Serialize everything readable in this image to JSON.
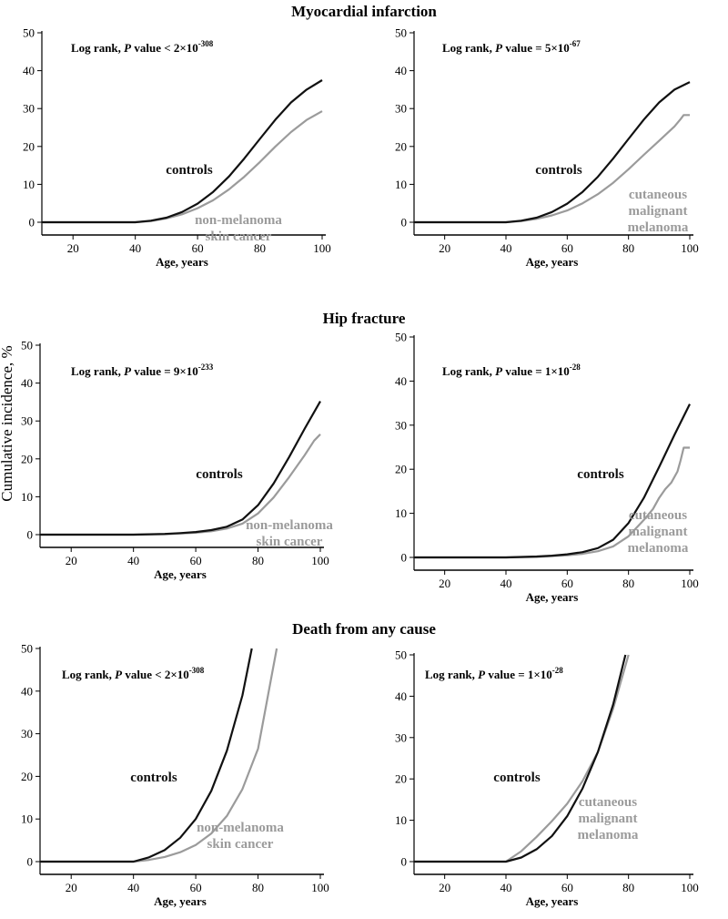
{
  "y_axis_label": "Cumulative incidence, %",
  "colors": {
    "controls": "#111111",
    "case": "#9b9b9b",
    "axis": "#000000"
  },
  "chart_data": [
    {
      "type": "line",
      "row_title": "Myocardial infarction",
      "p_main": "Log rank, P value < 2×10",
      "p_sup": "-308",
      "xlabel": "Age, years",
      "ylabel": "Cumulative incidence, %",
      "xlim": [
        10,
        100
      ],
      "ylim": [
        0,
        50
      ],
      "xticks": [
        20,
        40,
        60,
        80,
        100
      ],
      "yticks": [
        0,
        10,
        20,
        30,
        40,
        50
      ],
      "series": [
        {
          "name": "controls",
          "label_lines": [
            "controls"
          ],
          "color": "#111111",
          "x": [
            10,
            40,
            45,
            50,
            55,
            60,
            65,
            70,
            75,
            80,
            85,
            90,
            95,
            100
          ],
          "y": [
            0,
            0,
            0.4,
            1.2,
            2.7,
            4.9,
            8,
            12,
            16.8,
            22,
            27.1,
            31.6,
            35,
            37.5
          ]
        },
        {
          "name": "non-melanoma skin cancer",
          "label_lines": [
            "non-melanoma",
            "skin cancer"
          ],
          "color": "#9b9b9b",
          "x": [
            10,
            40,
            45,
            50,
            55,
            60,
            65,
            70,
            75,
            80,
            85,
            90,
            95,
            100
          ],
          "y": [
            0,
            0,
            0.3,
            1,
            2.1,
            3.7,
            5.8,
            8.6,
            12,
            15.9,
            20,
            23.8,
            27,
            29.3
          ]
        }
      ]
    },
    {
      "type": "line",
      "row_title": "",
      "p_main": "Log rank, P value = 5×10",
      "p_sup": "-67",
      "xlabel": "Age, years",
      "ylabel": "Cumulative incidence, %",
      "xlim": [
        10,
        100
      ],
      "ylim": [
        0,
        50
      ],
      "xticks": [
        20,
        40,
        60,
        80,
        100
      ],
      "yticks": [
        0,
        10,
        20,
        30,
        40,
        50
      ],
      "series": [
        {
          "name": "controls",
          "label_lines": [
            "controls"
          ],
          "color": "#111111",
          "x": [
            10,
            40,
            45,
            50,
            55,
            60,
            65,
            70,
            75,
            80,
            85,
            90,
            95,
            100
          ],
          "y": [
            0,
            0,
            0.4,
            1.2,
            2.7,
            4.9,
            8,
            12,
            16.8,
            22,
            27.1,
            31.6,
            35,
            37
          ]
        },
        {
          "name": "cutaneous malignant melanoma",
          "label_lines": [
            "cutaneous",
            "malignant",
            "melanoma"
          ],
          "color": "#9b9b9b",
          "x": [
            10,
            40,
            45,
            50,
            55,
            60,
            65,
            70,
            75,
            80,
            85,
            90,
            95,
            97,
            98,
            100
          ],
          "y": [
            0,
            0,
            0.3,
            0.9,
            1.8,
            3.1,
            5,
            7.4,
            10.4,
            14,
            17.8,
            21.5,
            25.3,
            27.2,
            28.3,
            28.3
          ]
        }
      ]
    },
    {
      "type": "line",
      "row_title": "Hip fracture",
      "p_main": "Log rank, P value = 9×10",
      "p_sup": "-233",
      "xlabel": "Age, years",
      "ylabel": "Cumulative incidence, %",
      "xlim": [
        10,
        100
      ],
      "ylim": [
        0,
        50
      ],
      "xticks": [
        20,
        40,
        60,
        80,
        100
      ],
      "yticks": [
        0,
        10,
        20,
        30,
        40,
        50
      ],
      "series": [
        {
          "name": "controls",
          "label_lines": [
            "controls"
          ],
          "color": "#111111",
          "x": [
            10,
            40,
            50,
            55,
            60,
            65,
            70,
            75,
            80,
            85,
            90,
            95,
            100
          ],
          "y": [
            0,
            0,
            0.2,
            0.4,
            0.7,
            1.2,
            2.1,
            4,
            7.8,
            13.5,
            20.5,
            28,
            35.2
          ]
        },
        {
          "name": "non-melanoma skin cancer",
          "label_lines": [
            "non-melanoma",
            "skin cancer"
          ],
          "color": "#9b9b9b",
          "x": [
            10,
            40,
            50,
            55,
            60,
            65,
            70,
            75,
            80,
            85,
            90,
            95,
            98,
            100
          ],
          "y": [
            0,
            0,
            0.1,
            0.3,
            0.5,
            0.9,
            1.6,
            2.9,
            5.6,
            9.8,
            15.2,
            21,
            24.8,
            26.5
          ]
        }
      ]
    },
    {
      "type": "line",
      "row_title": "",
      "p_main": "Log rank, P value = 1×10",
      "p_sup": "-28",
      "xlabel": "Age, years",
      "ylabel": "Cumulative incidence, %",
      "xlim": [
        10,
        100
      ],
      "ylim": [
        0,
        50
      ],
      "xticks": [
        20,
        40,
        60,
        80,
        100
      ],
      "yticks": [
        0,
        10,
        20,
        30,
        40,
        50
      ],
      "series": [
        {
          "name": "controls",
          "label_lines": [
            "controls"
          ],
          "color": "#111111",
          "x": [
            10,
            40,
            50,
            55,
            60,
            65,
            70,
            75,
            80,
            85,
            90,
            95,
            100
          ],
          "y": [
            0,
            0,
            0.2,
            0.4,
            0.7,
            1.2,
            2.1,
            4,
            7.8,
            13.5,
            20.5,
            27.8,
            34.8
          ]
        },
        {
          "name": "cutaneous malignant melanoma",
          "label_lines": [
            "cutaneous",
            "malignant",
            "melanoma"
          ],
          "color": "#9b9b9b",
          "x": [
            10,
            40,
            50,
            55,
            60,
            65,
            70,
            75,
            80,
            85,
            88,
            90,
            92,
            94,
            96,
            97,
            98,
            100
          ],
          "y": [
            0,
            0,
            0.1,
            0.3,
            0.5,
            0.8,
            1.4,
            2.5,
            4.8,
            8.5,
            11,
            13.5,
            15.5,
            17,
            19.5,
            22,
            24.9,
            24.9
          ]
        }
      ]
    },
    {
      "type": "line",
      "row_title": "Death from any cause",
      "p_main": "Log rank, P value < 2×10",
      "p_sup": "-308",
      "xlabel": "Age, years",
      "ylabel": "Cumulative incidence, %",
      "xlim": [
        10,
        100
      ],
      "ylim": [
        0,
        50
      ],
      "xticks": [
        20,
        40,
        60,
        80,
        100
      ],
      "yticks": [
        0,
        10,
        20,
        30,
        40,
        50
      ],
      "series": [
        {
          "name": "controls",
          "label_lines": [
            "controls"
          ],
          "color": "#111111",
          "x": [
            10,
            40,
            45,
            50,
            55,
            60,
            65,
            70,
            75,
            78
          ],
          "y": [
            0,
            0,
            1,
            2.7,
            5.6,
            10,
            16.6,
            26,
            39,
            50
          ]
        },
        {
          "name": "non-melanoma skin cancer",
          "label_lines": [
            "non-melanoma",
            "skin cancer"
          ],
          "color": "#9b9b9b",
          "x": [
            10,
            40,
            45,
            50,
            55,
            60,
            65,
            70,
            75,
            80,
            86
          ],
          "y": [
            0,
            0,
            0.4,
            1.1,
            2.2,
            3.9,
            6.6,
            10.7,
            17,
            26.5,
            50
          ]
        }
      ]
    },
    {
      "type": "line",
      "row_title": "",
      "p_main": "Log rank, P value = 1×10",
      "p_sup": "-28",
      "xlabel": "Age, years",
      "ylabel": "Cumulative incidence, %",
      "xlim": [
        10,
        100
      ],
      "ylim": [
        0,
        50
      ],
      "xticks": [
        20,
        40,
        60,
        80,
        100
      ],
      "yticks": [
        0,
        10,
        20,
        30,
        40,
        50
      ],
      "series": [
        {
          "name": "controls",
          "label_lines": [
            "controls"
          ],
          "color": "#111111",
          "x": [
            10,
            40,
            45,
            50,
            55,
            60,
            65,
            70,
            75,
            79
          ],
          "y": [
            0,
            0,
            1,
            3,
            6.2,
            11,
            17.7,
            26.5,
            38,
            50
          ]
        },
        {
          "name": "cutaneous malignant melanoma",
          "label_lines": [
            "cutaneous",
            "malignant",
            "melanoma"
          ],
          "color": "#9b9b9b",
          "x": [
            10,
            40,
            45,
            50,
            55,
            60,
            65,
            70,
            75,
            80
          ],
          "y": [
            0,
            0,
            2.5,
            6,
            9.8,
            14,
            19.5,
            26.5,
            37,
            50
          ]
        }
      ]
    }
  ]
}
